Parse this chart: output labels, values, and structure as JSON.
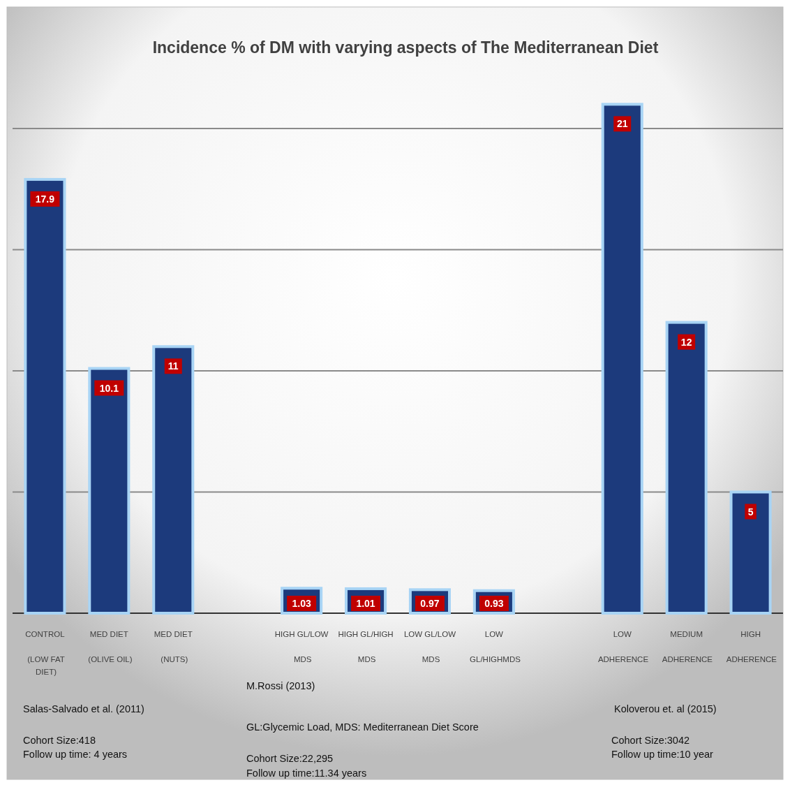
{
  "chart_data": {
    "type": "bar",
    "title": "Incidence % of DM with varying  aspects of The Mediterranean Diet",
    "categories": [
      "CONTROL\n(LOW FAT\nDIET)",
      "MED DIET\n(OLIVE OIL)",
      "MED DIET\n(NUTS)",
      "HIGH GL/LOW\nMDS",
      "HIGH GL/HIGH\nMDS",
      "LOW GL/LOW\nMDS",
      "LOW\nGL/HIGHMDS",
      "LOW\nADHERENCE",
      "MEDIUM\nADHERENCE",
      "HIGH\nADHERENCE"
    ],
    "values": [
      17.9,
      10.1,
      11,
      1.03,
      1.01,
      0.97,
      0.93,
      21,
      12,
      5
    ],
    "color": "#1c3a7c",
    "data_labels": true,
    "grid": "y",
    "tick_labels": "x",
    "legend": false,
    "yticks": [
      {
        "value": 0,
        "label": null
      },
      {
        "value": 5,
        "label": null
      },
      {
        "value": 10,
        "label": null
      },
      {
        "value": 15,
        "label": null
      },
      {
        "value": 20,
        "label": null
      }
    ],
    "annotations": [
      "Salas-Salvado et al. (2011)",
      "Cohort Size:418",
      "Follow up time: 4 years",
      "M.Rossi (2013)",
      "GL:Glycemic Load, MDS: Mediterranean Diet Score",
      "Cohort Size:22,295",
      "Follow up time:11.34 years",
      "Koloverou et. al (2015)",
      "Cohort Size:3042",
      "Follow up time:10 year"
    ]
  }
}
